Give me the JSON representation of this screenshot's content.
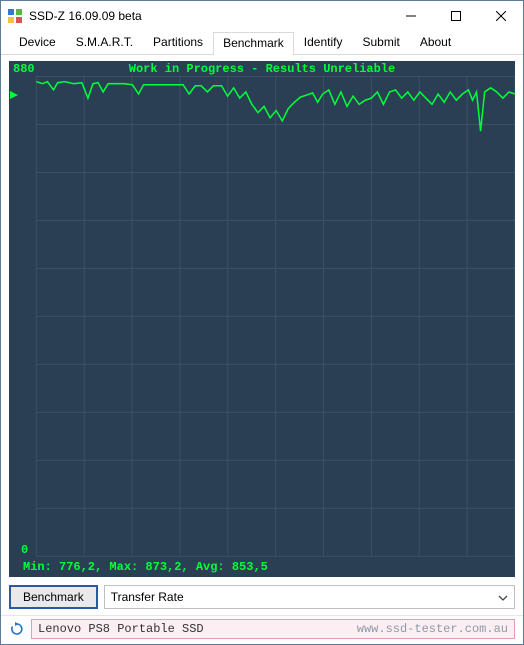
{
  "window": {
    "title": "SSD-Z 16.09.09 beta",
    "border_color": "#5e7a9b"
  },
  "tabs": {
    "items": [
      "Device",
      "S.M.A.R.T.",
      "Partitions",
      "Benchmark",
      "Identify",
      "Submit",
      "About"
    ],
    "active_index": 3
  },
  "chart": {
    "type": "line",
    "header": "Work in Progress - Results Unreliable",
    "y_max_label": "880",
    "y_min_label": "0",
    "stats_text": "Min: 776,2, Max: 873,2, Avg: 853,5",
    "background_color": "#2a3f54",
    "grid_color": "#3a5068",
    "line_color": "#00ff3a",
    "text_color": "#00ff3a",
    "grid_cols": 10,
    "grid_rows": 10,
    "viewbox_w": 500,
    "viewbox_h": 500,
    "marker_pos": 30,
    "series": [
      [
        27,
        20
      ],
      [
        33,
        22
      ],
      [
        38,
        20
      ],
      [
        44,
        28
      ],
      [
        48,
        21
      ],
      [
        55,
        20
      ],
      [
        64,
        22
      ],
      [
        72,
        21
      ],
      [
        78,
        36
      ],
      [
        83,
        22
      ],
      [
        88,
        21
      ],
      [
        93,
        30
      ],
      [
        98,
        22
      ],
      [
        106,
        22
      ],
      [
        114,
        22
      ],
      [
        122,
        23
      ],
      [
        128,
        32
      ],
      [
        133,
        23
      ],
      [
        139,
        23
      ],
      [
        147,
        23
      ],
      [
        156,
        23
      ],
      [
        164,
        23
      ],
      [
        172,
        23
      ],
      [
        178,
        32
      ],
      [
        184,
        24
      ],
      [
        190,
        24
      ],
      [
        196,
        30
      ],
      [
        202,
        24
      ],
      [
        210,
        24
      ],
      [
        216,
        34
      ],
      [
        222,
        26
      ],
      [
        228,
        36
      ],
      [
        234,
        30
      ],
      [
        240,
        42
      ],
      [
        246,
        50
      ],
      [
        252,
        44
      ],
      [
        258,
        55
      ],
      [
        264,
        48
      ],
      [
        270,
        58
      ],
      [
        276,
        46
      ],
      [
        282,
        40
      ],
      [
        288,
        35
      ],
      [
        294,
        33
      ],
      [
        300,
        31
      ],
      [
        305,
        40
      ],
      [
        310,
        32
      ],
      [
        316,
        28
      ],
      [
        322,
        42
      ],
      [
        328,
        30
      ],
      [
        334,
        44
      ],
      [
        340,
        34
      ],
      [
        346,
        42
      ],
      [
        352,
        38
      ],
      [
        358,
        36
      ],
      [
        364,
        30
      ],
      [
        370,
        42
      ],
      [
        376,
        30
      ],
      [
        382,
        28
      ],
      [
        388,
        36
      ],
      [
        394,
        30
      ],
      [
        400,
        38
      ],
      [
        406,
        30
      ],
      [
        412,
        36
      ],
      [
        418,
        42
      ],
      [
        424,
        32
      ],
      [
        430,
        40
      ],
      [
        436,
        30
      ],
      [
        442,
        38
      ],
      [
        448,
        32
      ],
      [
        454,
        28
      ],
      [
        458,
        38
      ],
      [
        462,
        30
      ],
      [
        466,
        68
      ],
      [
        470,
        30
      ],
      [
        476,
        26
      ],
      [
        482,
        30
      ],
      [
        488,
        36
      ],
      [
        494,
        30
      ],
      [
        500,
        32
      ]
    ]
  },
  "controls": {
    "benchmark_button": "Benchmark",
    "mode_label": "Transfer Rate"
  },
  "status": {
    "device": "Lenovo PS8 Portable SSD",
    "watermark": "www.ssd-tester.com.au",
    "box_bg": "#fceef3",
    "box_border": "#e29fb3"
  }
}
